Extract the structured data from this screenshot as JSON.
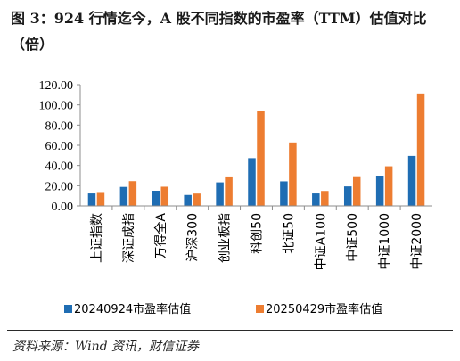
{
  "figure": {
    "title": "图 3：924 行情迄今，A 股不同指数的市盈率（TTM）估值对比（倍）",
    "source": "资料来源：Wind 资讯，财信证券"
  },
  "chart_data": {
    "type": "bar",
    "title": "",
    "xlabel": "",
    "ylabel": "",
    "ylim": [
      0,
      120
    ],
    "yticks": [
      "0.00",
      "20.00",
      "40.00",
      "60.00",
      "80.00",
      "100.00",
      "120.00"
    ],
    "grid": false,
    "legend_position": "bottom",
    "categories": [
      "上证指数",
      "深证成指",
      "万得全A",
      "沪深300",
      "创业板指",
      "科创50",
      "北证50",
      "中证A100",
      "中证500",
      "中证1000",
      "中证2000"
    ],
    "series": [
      {
        "name": "20240924市盈率估值",
        "color": "#1f6db3",
        "values": [
          12.3,
          18.8,
          15.0,
          10.8,
          23.3,
          47.3,
          24.3,
          12.3,
          19.3,
          29.5,
          49.5
        ]
      },
      {
        "name": "20250429市盈率估值",
        "color": "#ed7d31",
        "values": [
          13.7,
          24.5,
          19.0,
          12.2,
          28.3,
          94.2,
          62.8,
          14.8,
          28.5,
          39.2,
          111.3
        ]
      }
    ]
  }
}
